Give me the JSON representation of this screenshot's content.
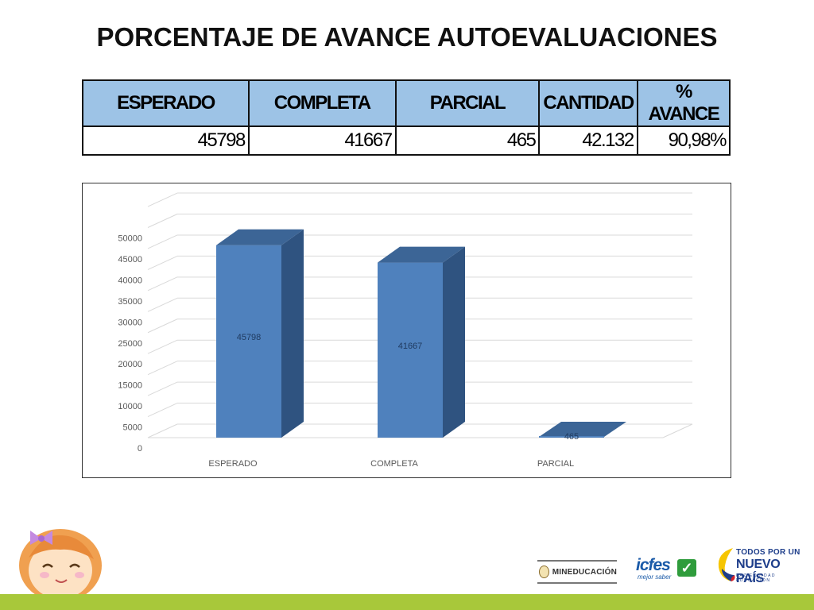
{
  "title": "PORCENTAJE DE AVANCE AUTOEVALUACIONES",
  "summary_table": {
    "headers": [
      "ESPERADO",
      "COMPLETA",
      "PARCIAL",
      "CANTIDAD",
      "% AVANCE"
    ],
    "row": [
      "45798",
      "41667",
      "465",
      "42.132",
      "90,98%"
    ]
  },
  "chart_data": {
    "type": "bar",
    "categories": [
      "ESPERADO",
      "COMPLETA",
      "PARCIAL"
    ],
    "values": [
      45798,
      41667,
      465
    ],
    "data_labels": [
      "45798",
      "41667",
      "465"
    ],
    "title": "",
    "xlabel": "",
    "ylabel": "",
    "ylim": [
      0,
      55000
    ],
    "yticks": [
      0,
      5000,
      10000,
      15000,
      20000,
      25000,
      30000,
      35000,
      40000,
      45000,
      50000
    ],
    "grid": true,
    "style": "3d",
    "colors": {
      "front": "#4f81bd",
      "side": "#2f5380",
      "top": "#3c6596",
      "label": "#1f3a5f"
    }
  },
  "logos": {
    "mineducacion": "MINEDUCACIÓN",
    "icfes": "icfes",
    "icfes_sub": "mejor saber",
    "pais_line1": "TODOS POR UN",
    "pais_line2": "NUEVO PAÍS",
    "pais_line3": "PAZ   EQUIDAD   EDUCACIÓN"
  },
  "colors": {
    "table_header": "#9dc3e6",
    "footer_band": "#a8c83a"
  }
}
